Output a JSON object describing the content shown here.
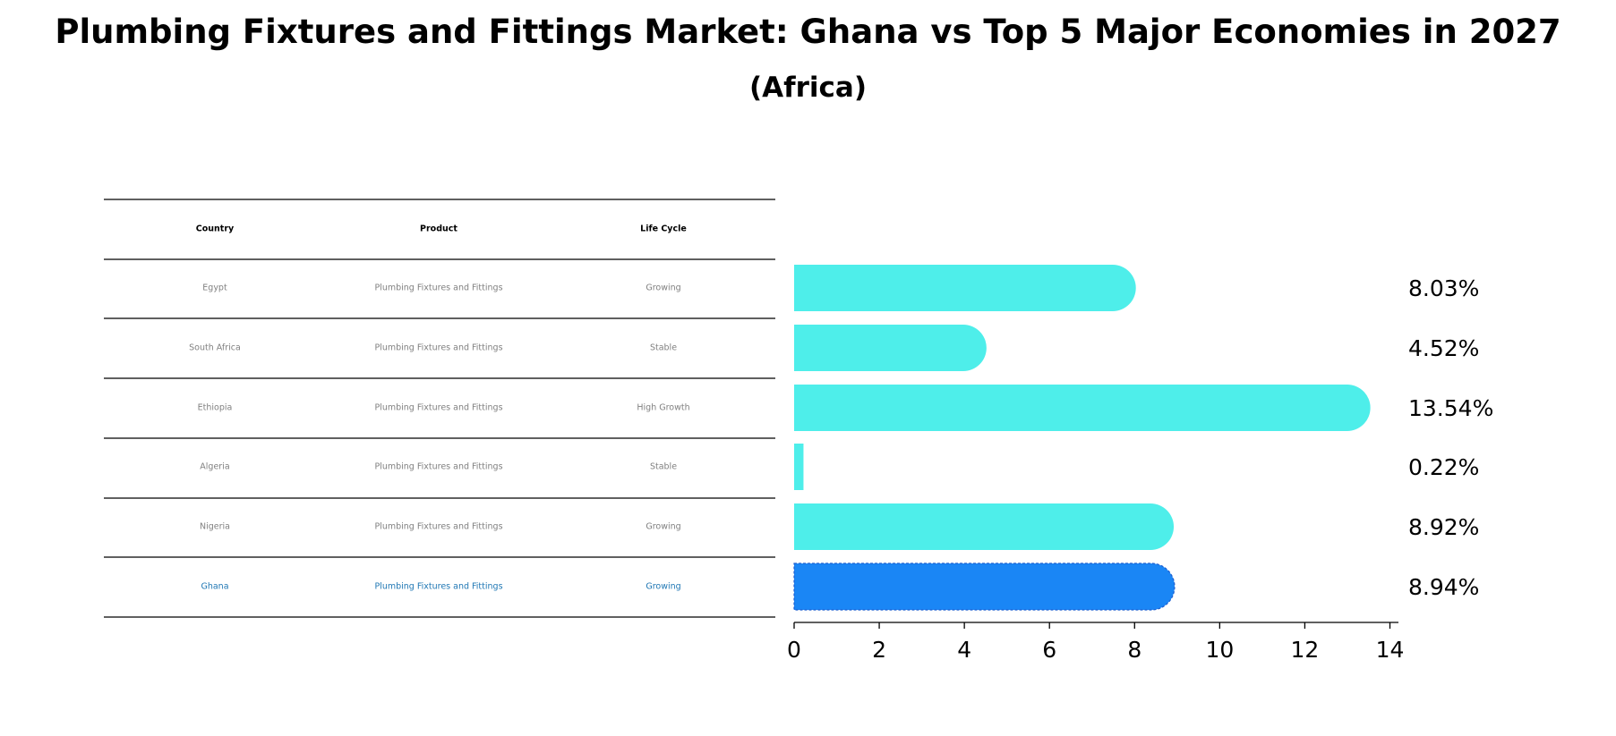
{
  "title": "Plumbing Fixtures and Fittings Market: Ghana vs Top 5 Major Economies in 2027",
  "subtitle": "(Africa)",
  "table": {
    "headers": [
      "Country",
      "Product",
      "Life Cycle"
    ],
    "rows": [
      [
        "Egypt",
        "Plumbing Fixtures and Fittings",
        "Growing"
      ],
      [
        "South Africa",
        "Plumbing Fixtures and Fittings",
        "Stable"
      ],
      [
        "Ethiopia",
        "Plumbing Fixtures and Fittings",
        "High Growth"
      ],
      [
        "Algeria",
        "Plumbing Fixtures and Fittings",
        "Stable"
      ],
      [
        "Nigeria",
        "Plumbing Fixtures and Fittings",
        "Growing"
      ],
      [
        "Ghana",
        "Plumbing Fixtures and Fittings",
        "Growing"
      ]
    ],
    "highlight_row": 5
  },
  "colors": {
    "bar": "#4eeeea",
    "highlight_bar": "#1a86f5",
    "highlight_text": "#1f77b4",
    "muted_text": "#808080"
  },
  "chart_data": {
    "type": "bar",
    "orientation": "horizontal",
    "categories": [
      "Egypt",
      "South Africa",
      "Ethiopia",
      "Algeria",
      "Nigeria",
      "Ghana"
    ],
    "values": [
      8.03,
      4.52,
      13.54,
      0.22,
      8.92,
      8.94
    ],
    "value_labels": [
      "8.03%",
      "4.52%",
      "13.54%",
      "0.22%",
      "8.92%",
      "8.94%"
    ],
    "highlight": "Ghana",
    "xlim": [
      0,
      14.2
    ],
    "xticks": [
      0,
      2,
      4,
      6,
      8,
      10,
      12,
      14
    ],
    "grid": false
  }
}
